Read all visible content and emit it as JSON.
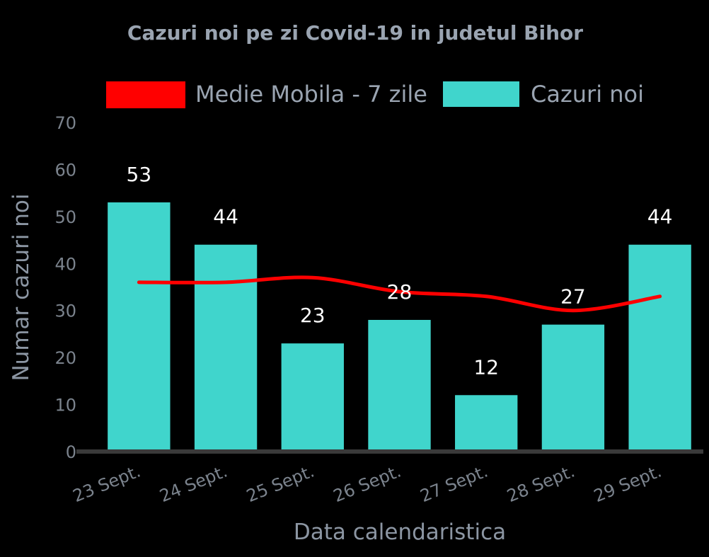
{
  "chart_data": {
    "type": "bar",
    "title": "Cazuri noi pe zi Covid-19 in judetul Bihor",
    "xlabel": "Data calendaristica",
    "ylabel": "Numar cazuri noi",
    "categories": [
      "23 Sept.",
      "24 Sept.",
      "25 Sept.",
      "26 Sept.",
      "27 Sept.",
      "28 Sept.",
      "29 Sept."
    ],
    "ylim": [
      0,
      70
    ],
    "yticks": [
      0,
      10,
      20,
      30,
      40,
      50,
      60,
      70
    ],
    "grid": false,
    "legend_position": "top",
    "series": [
      {
        "name": "Cazuri noi",
        "type": "bar",
        "color": "#40d5cc",
        "values": [
          53,
          44,
          23,
          28,
          12,
          27,
          44
        ],
        "data_labels": true
      },
      {
        "name": "Medie Mobila - 7 zile",
        "type": "line",
        "color": "#ff0000",
        "values": [
          36,
          36,
          37,
          34,
          33,
          30,
          33
        ]
      }
    ]
  },
  "colors": {
    "background": "#000000",
    "axis_line": "#3a3a3a"
  }
}
